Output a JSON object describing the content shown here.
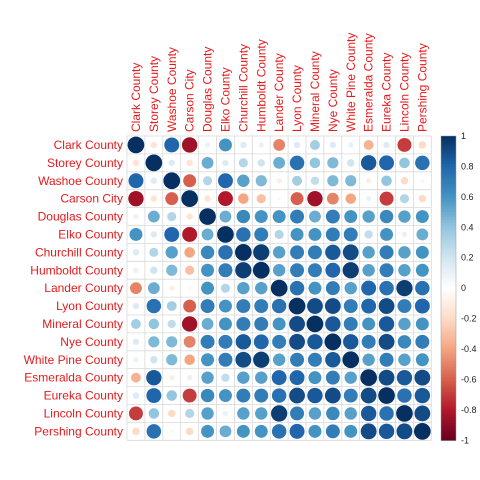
{
  "chart_data": {
    "type": "heatmap",
    "variables": [
      "Clark County",
      "Storey County",
      "Washoe County",
      "Carson City",
      "Douglas County",
      "Elko County",
      "Churchill County",
      "Humboldt County",
      "Lander County",
      "Lyon County",
      "Mineral County",
      "Nye County",
      "White Pine County",
      "Esmeralda County",
      "Eureka County",
      "Lincoln County",
      "Pershing County"
    ],
    "matrix": [
      [
        1.0,
        -0.15,
        0.8,
        -0.85,
        0.1,
        0.6,
        0.15,
        0.1,
        -0.5,
        0.15,
        0.35,
        0.15,
        0.1,
        -0.35,
        0.15,
        -0.7,
        -0.2
      ],
      [
        -0.15,
        1.0,
        0.15,
        -0.15,
        0.5,
        0.15,
        0.3,
        0.2,
        0.5,
        0.75,
        0.4,
        0.45,
        0.2,
        0.85,
        0.8,
        0.4,
        0.75
      ],
      [
        0.8,
        0.15,
        1.0,
        -0.6,
        0.3,
        0.8,
        0.55,
        0.45,
        -0.1,
        0.35,
        0.25,
        0.45,
        0.45,
        -0.1,
        0.4,
        -0.2,
        0.05
      ],
      [
        -0.85,
        -0.15,
        -0.6,
        1.0,
        -0.15,
        -0.8,
        -0.4,
        -0.3,
        0.05,
        -0.6,
        -0.85,
        -0.5,
        -0.4,
        0.1,
        -0.7,
        0.3,
        -0.2
      ],
      [
        0.1,
        0.5,
        0.3,
        -0.15,
        1.0,
        0.5,
        0.65,
        0.6,
        0.6,
        0.7,
        0.5,
        0.7,
        0.6,
        0.55,
        0.65,
        0.55,
        0.6
      ],
      [
        0.6,
        0.15,
        0.8,
        -0.8,
        0.5,
        1.0,
        0.75,
        0.7,
        0.3,
        0.6,
        0.6,
        0.7,
        0.7,
        0.25,
        0.6,
        0.1,
        0.5
      ],
      [
        0.15,
        0.3,
        0.55,
        -0.4,
        0.65,
        0.75,
        1.0,
        0.95,
        0.55,
        0.7,
        0.7,
        0.85,
        0.9,
        0.55,
        0.7,
        0.55,
        0.6
      ],
      [
        0.1,
        0.2,
        0.45,
        -0.3,
        0.6,
        0.7,
        0.95,
        1.0,
        0.55,
        0.7,
        0.7,
        0.8,
        0.95,
        0.55,
        0.7,
        0.55,
        0.6
      ],
      [
        -0.5,
        0.5,
        -0.1,
        0.05,
        0.6,
        0.3,
        0.55,
        0.55,
        1.0,
        0.75,
        0.6,
        0.7,
        0.55,
        0.8,
        0.75,
        0.95,
        0.75
      ],
      [
        0.15,
        0.75,
        0.35,
        -0.6,
        0.7,
        0.6,
        0.7,
        0.7,
        0.75,
        1.0,
        0.9,
        0.9,
        0.7,
        0.8,
        0.9,
        0.7,
        0.8
      ],
      [
        0.35,
        0.4,
        0.25,
        -0.85,
        0.5,
        0.6,
        0.7,
        0.7,
        0.6,
        0.9,
        1.0,
        0.85,
        0.7,
        0.6,
        0.85,
        0.55,
        0.6
      ],
      [
        0.15,
        0.45,
        0.45,
        -0.5,
        0.7,
        0.7,
        0.85,
        0.8,
        0.7,
        0.9,
        0.85,
        1.0,
        0.85,
        0.7,
        0.9,
        0.65,
        0.7
      ],
      [
        0.1,
        0.2,
        0.45,
        -0.4,
        0.6,
        0.7,
        0.9,
        0.95,
        0.55,
        0.7,
        0.7,
        0.85,
        1.0,
        0.55,
        0.7,
        0.55,
        0.6
      ],
      [
        -0.35,
        0.85,
        -0.1,
        0.1,
        0.55,
        0.25,
        0.55,
        0.55,
        0.8,
        0.8,
        0.6,
        0.7,
        0.55,
        1.0,
        0.9,
        0.85,
        0.9
      ],
      [
        0.15,
        0.8,
        0.4,
        -0.7,
        0.65,
        0.6,
        0.7,
        0.7,
        0.75,
        0.9,
        0.85,
        0.9,
        0.7,
        0.9,
        1.0,
        0.75,
        0.85
      ],
      [
        -0.7,
        0.4,
        -0.2,
        0.3,
        0.55,
        0.1,
        0.55,
        0.55,
        0.95,
        0.7,
        0.55,
        0.65,
        0.55,
        0.85,
        0.75,
        1.0,
        0.9
      ],
      [
        -0.2,
        0.75,
        0.05,
        -0.2,
        0.6,
        0.5,
        0.6,
        0.6,
        0.75,
        0.8,
        0.6,
        0.7,
        0.6,
        0.9,
        0.85,
        0.9,
        1.0
      ]
    ],
    "colorbar": {
      "range": [
        -1,
        1
      ],
      "ticks": [
        "-1",
        "-0.8",
        "-0.6",
        "-0.4",
        "-0.2",
        "0",
        "0.2",
        "0.4",
        "0.6",
        "0.8",
        "1"
      ],
      "colors": [
        "#67001f",
        "#b2182b",
        "#d6604d",
        "#f4a582",
        "#fddbc7",
        "#ffffff",
        "#d1e5f0",
        "#92c5de",
        "#4393c3",
        "#2166ac",
        "#053061"
      ]
    },
    "label_color": "#e41a1c",
    "grid": true,
    "legend": "right"
  }
}
